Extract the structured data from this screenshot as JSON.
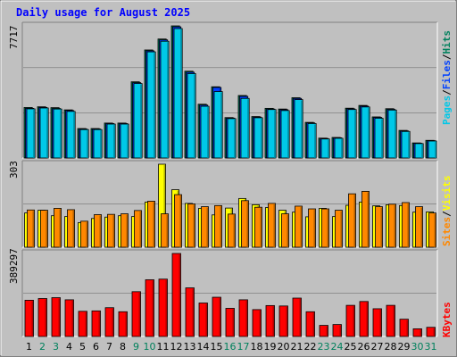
{
  "chart_data": {
    "type": "bar",
    "title": "Daily usage for August 2025",
    "colors": {
      "title": "#0000ff",
      "background": "#c0c0c0",
      "frame": "#e0e0e0",
      "hits": "#00805c",
      "files": "#0040ff",
      "pages": "#00c8e8",
      "visits": "#ffff00",
      "sites": "#ff8800",
      "kbytes": "#ff0000",
      "weekend_label": "#00805c",
      "weekday_label": "#000000"
    },
    "categories": [
      "1",
      "2",
      "3",
      "4",
      "5",
      "6",
      "7",
      "8",
      "9",
      "10",
      "11",
      "12",
      "13",
      "14",
      "15",
      "16",
      "17",
      "18",
      "19",
      "20",
      "21",
      "22",
      "23",
      "24",
      "25",
      "26",
      "27",
      "28",
      "29",
      "30",
      "31"
    ],
    "weekend_days": [
      2,
      3,
      9,
      10,
      16,
      17,
      23,
      24,
      30,
      31
    ],
    "panels": [
      {
        "id": "hits_files_pages",
        "ymax_label": "7717",
        "ymax": 7717,
        "legend": [
          "Pages",
          "/",
          "Files",
          "/",
          "Hits"
        ],
        "series": [
          {
            "name": "Hits",
            "values": [
              2950,
              2990,
              2940,
              2810,
              1720,
              1720,
              2040,
              2040,
              4450,
              6310,
              6950,
              7717,
              5070,
              3140,
              4160,
              2360,
              3650,
              2420,
              2900,
              2860,
              3520,
              2080,
              1160,
              1200,
              2910,
              3070,
              2400,
              2880,
              1610,
              880,
              1030
            ]
          },
          {
            "name": "Files",
            "values": [
              2900,
              2950,
              2890,
              2770,
              1690,
              1690,
              2010,
              2010,
              4400,
              6260,
              6900,
              7660,
              5010,
              3090,
              4120,
              2330,
              3600,
              2390,
              2860,
              2820,
              3480,
              2050,
              1140,
              1180,
              2870,
              3030,
              2370,
              2840,
              1580,
              860,
              1010
            ]
          },
          {
            "name": "Pages",
            "values": [
              2870,
              2920,
              2860,
              2720,
              1660,
              1660,
              1980,
              1980,
              4350,
              6200,
              6820,
              7560,
              4930,
              3020,
              3880,
              2300,
              3480,
              2350,
              2830,
              2770,
              3410,
              2010,
              1110,
              1150,
              2830,
              2980,
              2320,
              2800,
              1550,
              840,
              990
            ]
          }
        ]
      },
      {
        "id": "visits_sites",
        "ymax_label": "303",
        "ymax": 303,
        "legend": [
          "Sites",
          "/",
          "Visits"
        ],
        "series": [
          {
            "name": "Visits",
            "values": [
              125,
              135,
              115,
              112,
              90,
              105,
              110,
              115,
              112,
              165,
              303,
              210,
              160,
              142,
              118,
              143,
              178,
              155,
              145,
              135,
              128,
              111,
              142,
              112,
              153,
              165,
              151,
              155,
              152,
              128,
              129
            ]
          },
          {
            "name": "Sites",
            "values": [
              136,
              135,
              142,
              137,
              95,
              119,
              120,
              122,
              134,
              168,
              122,
              192,
              158,
              148,
              152,
              121,
              170,
              146,
              160,
              122,
              150,
              140,
              140,
              135,
              195,
              204,
              148,
              157,
              163,
              148,
              125
            ]
          }
        ]
      },
      {
        "id": "kbytes",
        "ymax_label": "389297",
        "ymax": 389297,
        "legend": [
          "KBytes"
        ],
        "series": [
          {
            "name": "KBytes",
            "values": [
              170000,
              178000,
              182000,
              172000,
              118000,
              120000,
              135000,
              116000,
              210000,
              266000,
              269000,
              389297,
              228000,
              157000,
              184000,
              132000,
              172000,
              126000,
              145000,
              143000,
              180000,
              116000,
              52000,
              56000,
              146000,
              164000,
              130000,
              146000,
              81000,
              36000,
              43000
            ]
          }
        ]
      }
    ]
  }
}
